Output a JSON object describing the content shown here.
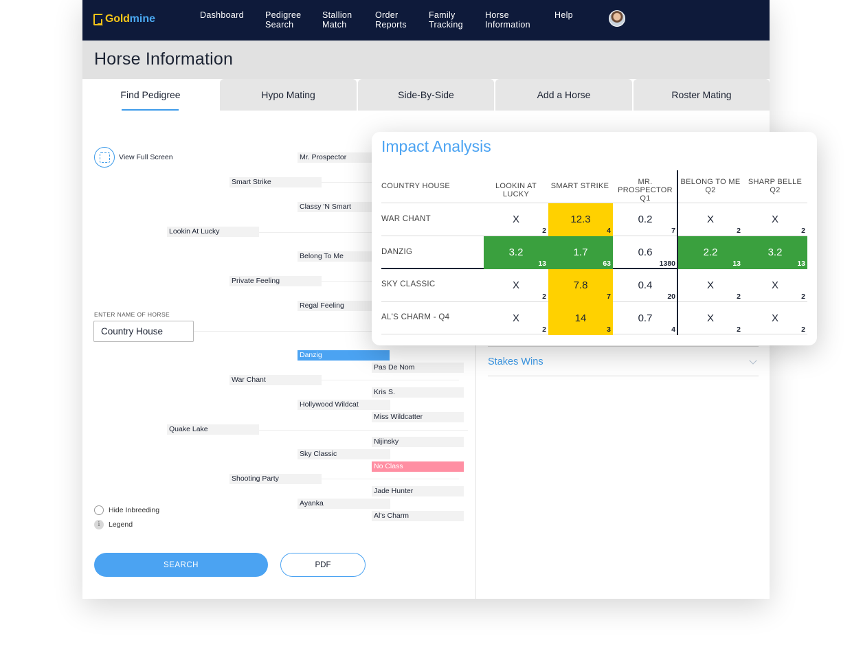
{
  "brand": {
    "logo_text_1": "Gold",
    "logo_text_2": "mine"
  },
  "nav": {
    "items": [
      {
        "line1": "Dashboard",
        "line2": ""
      },
      {
        "line1": "Pedigree",
        "line2": "Search"
      },
      {
        "line1": "Stallion",
        "line2": "Match"
      },
      {
        "line1": "Order",
        "line2": "Reports"
      },
      {
        "line1": "Family",
        "line2": "Tracking"
      },
      {
        "line1": "Horse",
        "line2": "Information"
      },
      {
        "line1": "Help",
        "line2": ""
      }
    ]
  },
  "page": {
    "title": "Horse Information"
  },
  "tabs": [
    "Find Pedigree",
    "Hypo Mating",
    "Side-By-Side",
    "Add a Horse",
    "Roster Mating"
  ],
  "pedigree": {
    "view_full_screen": "View Full Screen",
    "input_label": "ENTER NAME OF HORSE",
    "input_value": "Country House",
    "nodes": [
      "Mr. Prospector",
      "Smart Strike",
      "Classy 'N Smart",
      "Lookin At Lucky",
      "Belong To Me",
      "Private Feeling",
      "Regal Feeling",
      "Danzig",
      "Pas De Nom",
      "War Chant",
      "Kris S.",
      "Hollywood Wildcat",
      "Miss Wildcatter",
      "Quake Lake",
      "Nijinsky",
      "Sky Classic",
      "No Class",
      "Shooting Party",
      "Jade Hunter",
      "Ayanka",
      "Al's Charm"
    ],
    "hide_inbreeding": "Hide Inbreeding",
    "legend": "Legend",
    "info_glyph": "i",
    "search_button": "SEARCH",
    "pdf_button": "PDF"
  },
  "stakes": {
    "label": "Stakes Wins"
  },
  "impact": {
    "title": "Impact Analysis",
    "corner_header": "COUNTRY HOUSE",
    "columns": [
      {
        "line1": "LOOKIN AT LUCKY",
        "line2": ""
      },
      {
        "line1": "SMART STRIKE",
        "line2": ""
      },
      {
        "line1": "MR. PROSPECTOR",
        "line2": "Q1"
      },
      {
        "line1": "BELONG TO ME",
        "line2": "Q2"
      },
      {
        "line1": "SHARP BELLE",
        "line2": "Q2"
      }
    ],
    "rows": [
      {
        "label": "WAR CHANT",
        "cells": [
          {
            "v": "X",
            "n": "2",
            "color": "none"
          },
          {
            "v": "12.3",
            "n": "4",
            "color": "yellow"
          },
          {
            "v": "0.2",
            "n": "7",
            "color": "none"
          },
          {
            "v": "X",
            "n": "2",
            "color": "none"
          },
          {
            "v": "X",
            "n": "2",
            "color": "none"
          }
        ]
      },
      {
        "label": "DANZIG",
        "cells": [
          {
            "v": "3.2",
            "n": "13",
            "color": "green"
          },
          {
            "v": "1.7",
            "n": "63",
            "color": "green"
          },
          {
            "v": "0.6",
            "n": "1380",
            "color": "none"
          },
          {
            "v": "2.2",
            "n": "13",
            "color": "green"
          },
          {
            "v": "3.2",
            "n": "13",
            "color": "green"
          }
        ]
      },
      {
        "label": "SKY CLASSIC",
        "cells": [
          {
            "v": "X",
            "n": "2",
            "color": "none"
          },
          {
            "v": "7.8",
            "n": "7",
            "color": "yellow"
          },
          {
            "v": "0.4",
            "n": "20",
            "color": "none"
          },
          {
            "v": "X",
            "n": "2",
            "color": "none"
          },
          {
            "v": "X",
            "n": "2",
            "color": "none"
          }
        ]
      },
      {
        "label": "AL'S CHARM - Q4",
        "cells": [
          {
            "v": "X",
            "n": "2",
            "color": "none"
          },
          {
            "v": "14",
            "n": "3",
            "color": "yellow"
          },
          {
            "v": "0.7",
            "n": "4",
            "color": "none"
          },
          {
            "v": "X",
            "n": "2",
            "color": "none"
          },
          {
            "v": "X",
            "n": "2",
            "color": "none"
          }
        ]
      }
    ],
    "colors": {
      "yellow": "#ffd100",
      "green": "#3aa03e",
      "accent": "#4ba3f2"
    }
  }
}
